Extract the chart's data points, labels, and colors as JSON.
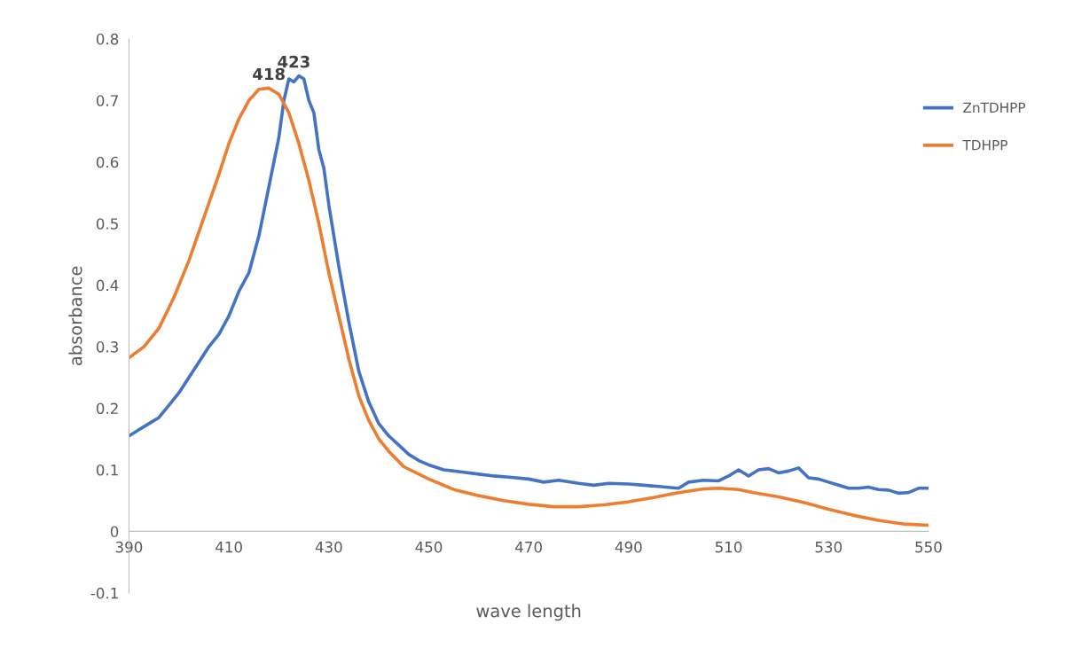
{
  "chart_data": {
    "type": "line",
    "xlabel": "wave length",
    "ylabel": "absorbance",
    "xlim": [
      390,
      550
    ],
    "xticks": [
      390,
      410,
      430,
      450,
      470,
      490,
      510,
      530,
      550
    ],
    "ylim": [
      -0.1,
      0.8
    ],
    "yticks": [
      -0.1,
      0,
      0.1,
      0.2,
      0.3,
      0.4,
      0.5,
      0.6,
      0.7,
      0.8
    ],
    "grid": false,
    "legend": "right",
    "marker": "none",
    "line_style": "solid",
    "annotations": [
      {
        "text": "418",
        "x": 418,
        "y": 0.72
      },
      {
        "text": "423",
        "x": 423,
        "y": 0.74
      }
    ],
    "series": [
      {
        "name": "ZnTDHPP",
        "color": "#4472c4",
        "x": [
          390,
          392,
          394,
          396,
          398,
          400,
          402,
          404,
          406,
          408,
          410,
          412,
          414,
          416,
          418,
          420,
          421,
          422,
          423,
          424,
          425,
          426,
          427,
          428,
          429,
          430,
          432,
          434,
          436,
          438,
          440,
          442,
          444,
          446,
          448,
          450,
          453,
          456,
          460,
          463,
          466,
          470,
          473,
          476,
          480,
          483,
          486,
          490,
          493,
          496,
          500,
          502,
          505,
          508,
          510,
          512,
          514,
          516,
          518,
          520,
          522,
          524,
          526,
          528,
          530,
          532,
          534,
          536,
          538,
          540,
          542,
          544,
          546,
          548,
          550
        ],
        "values": [
          0.155,
          0.165,
          0.175,
          0.185,
          0.205,
          0.225,
          0.25,
          0.275,
          0.3,
          0.32,
          0.35,
          0.39,
          0.42,
          0.48,
          0.56,
          0.64,
          0.7,
          0.735,
          0.73,
          0.74,
          0.735,
          0.7,
          0.68,
          0.62,
          0.59,
          0.53,
          0.43,
          0.34,
          0.26,
          0.21,
          0.175,
          0.155,
          0.14,
          0.125,
          0.115,
          0.108,
          0.1,
          0.097,
          0.093,
          0.09,
          0.088,
          0.085,
          0.08,
          0.083,
          0.078,
          0.075,
          0.078,
          0.077,
          0.075,
          0.073,
          0.07,
          0.08,
          0.083,
          0.082,
          0.09,
          0.1,
          0.09,
          0.1,
          0.102,
          0.095,
          0.098,
          0.103,
          0.087,
          0.085,
          0.08,
          0.075,
          0.07,
          0.07,
          0.072,
          0.068,
          0.067,
          0.062,
          0.063,
          0.07,
          0.07
        ]
      },
      {
        "name": "TDHPP",
        "color": "#ed7d31",
        "x": [
          390,
          393,
          396,
          399,
          402,
          405,
          408,
          410,
          412,
          414,
          416,
          418,
          420,
          422,
          424,
          426,
          428,
          430,
          432,
          434,
          436,
          438,
          440,
          442,
          445,
          450,
          455,
          460,
          465,
          470,
          475,
          480,
          485,
          490,
          495,
          500,
          505,
          508,
          512,
          515,
          520,
          525,
          530,
          535,
          540,
          545,
          550
        ],
        "values": [
          0.282,
          0.3,
          0.33,
          0.38,
          0.44,
          0.51,
          0.58,
          0.63,
          0.67,
          0.7,
          0.718,
          0.72,
          0.71,
          0.68,
          0.63,
          0.57,
          0.5,
          0.42,
          0.35,
          0.28,
          0.22,
          0.18,
          0.15,
          0.13,
          0.105,
          0.085,
          0.068,
          0.058,
          0.05,
          0.044,
          0.04,
          0.04,
          0.043,
          0.048,
          0.055,
          0.063,
          0.069,
          0.07,
          0.068,
          0.063,
          0.056,
          0.047,
          0.036,
          0.026,
          0.018,
          0.012,
          0.01
        ]
      }
    ]
  }
}
